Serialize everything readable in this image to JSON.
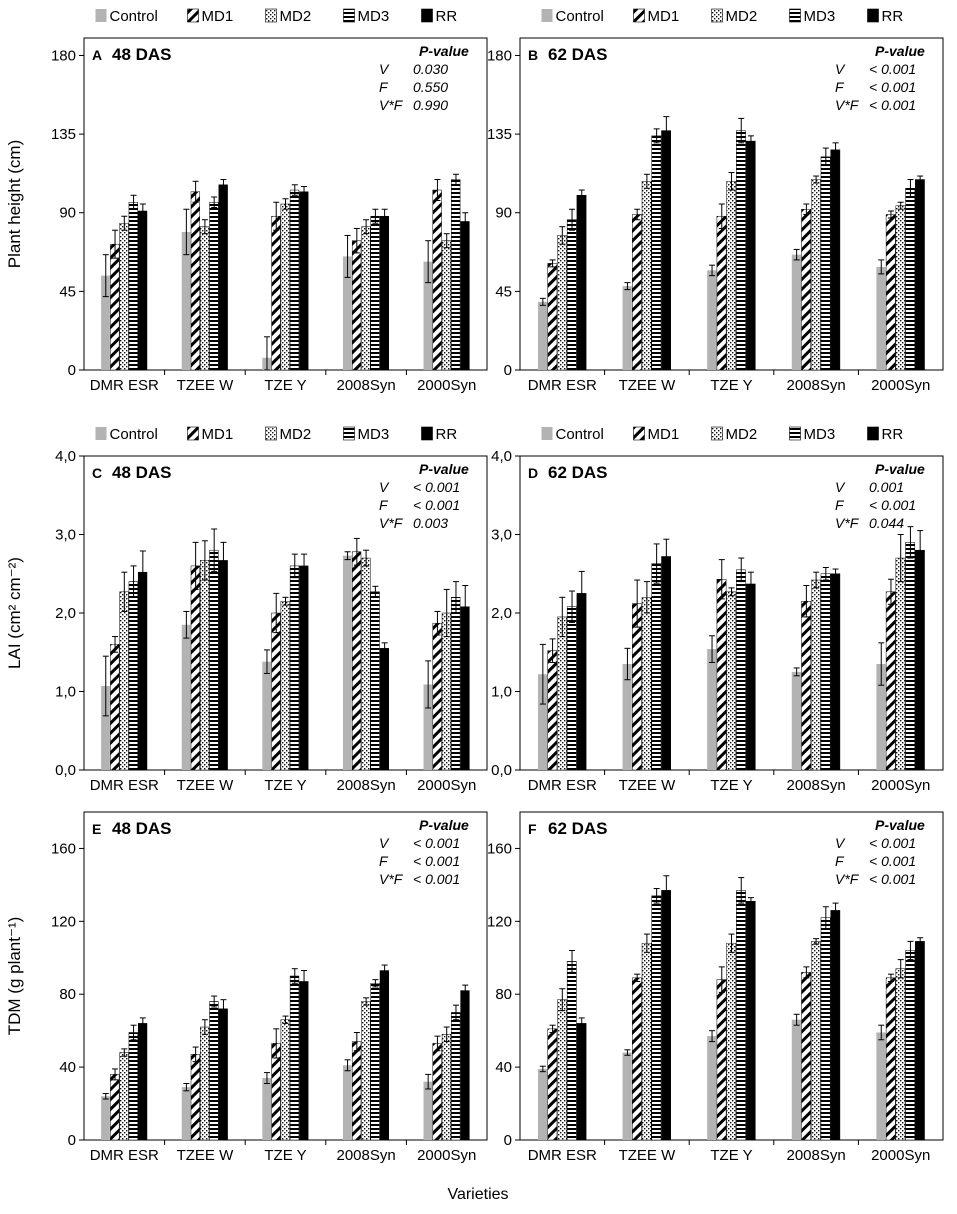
{
  "legend": [
    "Control",
    "MD1",
    "MD2",
    "MD3",
    "RR"
  ],
  "colors": {
    "control": "#b3b3b3",
    "ink": "#000000",
    "bg": "#ffffff"
  },
  "common_xlabel": "Varieties",
  "pvalue_title": "P-value",
  "chart_data": [
    {
      "type": "bar",
      "panel": "A",
      "title": "48 DAS",
      "categories": [
        "DMR ESR",
        "TZEE W",
        "TZE Y",
        "2008Syn",
        "2000Syn"
      ],
      "ylabel": "Plant height (cm)",
      "ylim": [
        0,
        190
      ],
      "yticks": [
        0,
        45,
        90,
        135,
        180
      ],
      "ytick_labels": [
        "0",
        "45",
        "90",
        "135",
        "180"
      ],
      "pvalues": [
        [
          "V",
          "0.030"
        ],
        [
          "F",
          "0.550"
        ],
        [
          "V*F",
          "0.990"
        ]
      ],
      "series": [
        {
          "name": "Control",
          "values": [
            54,
            79,
            7,
            65,
            62
          ],
          "errors": [
            12,
            13,
            12,
            12,
            12
          ]
        },
        {
          "name": "MD1",
          "values": [
            72,
            102,
            88,
            74,
            103
          ],
          "errors": [
            8,
            6,
            8,
            7,
            6
          ]
        },
        {
          "name": "MD2",
          "values": [
            84,
            82,
            95,
            82,
            74
          ],
          "errors": [
            4,
            4,
            3,
            4,
            4
          ]
        },
        {
          "name": "MD3",
          "values": [
            96,
            96,
            103,
            88,
            109
          ],
          "errors": [
            4,
            3,
            3,
            4,
            3
          ]
        },
        {
          "name": "RR",
          "values": [
            91,
            106,
            102,
            88,
            85
          ],
          "errors": [
            4,
            3,
            3,
            4,
            5
          ]
        }
      ]
    },
    {
      "type": "bar",
      "panel": "B",
      "title": "62 DAS",
      "categories": [
        "DMR ESR",
        "TZEE W",
        "TZE Y",
        "2008Syn",
        "2000Syn"
      ],
      "ylabel": "",
      "ylim": [
        0,
        190
      ],
      "yticks": [
        0,
        45,
        90,
        135,
        180
      ],
      "ytick_labels": [
        "0",
        "45",
        "90",
        "135",
        "180"
      ],
      "pvalues": [
        [
          "V",
          "< 0.001"
        ],
        [
          "F",
          "< 0.001"
        ],
        [
          "V*F",
          "< 0.001"
        ]
      ],
      "series": [
        {
          "name": "Control",
          "values": [
            39,
            48,
            57,
            66,
            59
          ],
          "errors": [
            2,
            2,
            3,
            3,
            4
          ]
        },
        {
          "name": "MD1",
          "values": [
            61,
            89,
            88,
            92,
            89
          ],
          "errors": [
            2,
            3,
            7,
            3,
            2
          ]
        },
        {
          "name": "MD2",
          "values": [
            77,
            108,
            108,
            109,
            94
          ],
          "errors": [
            5,
            4,
            5,
            2,
            2
          ]
        },
        {
          "name": "MD3",
          "values": [
            86,
            134,
            137,
            122,
            104
          ],
          "errors": [
            6,
            4,
            7,
            5,
            5
          ]
        },
        {
          "name": "RR",
          "values": [
            100,
            137,
            131,
            126,
            109
          ],
          "errors": [
            3,
            8,
            3,
            4,
            2
          ]
        }
      ]
    },
    {
      "type": "bar",
      "panel": "C",
      "title": "48 DAS",
      "categories": [
        "DMR ESR",
        "TZEE W",
        "TZE Y",
        "2008Syn",
        "2000Syn"
      ],
      "ylabel": "LAI (cm² cm⁻²)",
      "ylim": [
        0,
        4
      ],
      "yticks": [
        0,
        1,
        2,
        3,
        4
      ],
      "ytick_labels": [
        "0,0",
        "1,0",
        "2,0",
        "3,0",
        "4,0"
      ],
      "pvalues": [
        [
          "V",
          "< 0.001"
        ],
        [
          "F",
          "< 0.001"
        ],
        [
          "V*F",
          "0.003"
        ]
      ],
      "series": [
        {
          "name": "Control",
          "values": [
            1.07,
            1.85,
            1.38,
            2.73,
            1.09
          ],
          "errors": [
            0.38,
            0.17,
            0.15,
            0.05,
            0.3
          ]
        },
        {
          "name": "MD1",
          "values": [
            1.6,
            2.6,
            2.0,
            2.78,
            1.87
          ],
          "errors": [
            0.1,
            0.3,
            0.25,
            0.17,
            0.15
          ]
        },
        {
          "name": "MD2",
          "values": [
            2.27,
            2.67,
            2.15,
            2.7,
            2.0
          ],
          "errors": [
            0.25,
            0.25,
            0.05,
            0.1,
            0.3
          ]
        },
        {
          "name": "MD3",
          "values": [
            2.4,
            2.8,
            2.6,
            2.27,
            2.2
          ],
          "errors": [
            0.2,
            0.27,
            0.15,
            0.07,
            0.2
          ]
        },
        {
          "name": "RR",
          "values": [
            2.52,
            2.67,
            2.6,
            1.55,
            2.08
          ],
          "errors": [
            0.27,
            0.23,
            0.15,
            0.07,
            0.27
          ]
        }
      ]
    },
    {
      "type": "bar",
      "panel": "D",
      "title": "62 DAS",
      "categories": [
        "DMR ESR",
        "TZEE W",
        "TZE Y",
        "2008Syn",
        "2000Syn"
      ],
      "ylabel": "",
      "ylim": [
        0,
        4
      ],
      "yticks": [
        0,
        1,
        2,
        3,
        4
      ],
      "ytick_labels": [
        "0,0",
        "1,0",
        "2,0",
        "3,0",
        "4,0"
      ],
      "pvalues": [
        [
          "V",
          "0.001"
        ],
        [
          "F",
          "< 0.001"
        ],
        [
          "V*F",
          "0.044"
        ]
      ],
      "series": [
        {
          "name": "Control",
          "values": [
            1.22,
            1.35,
            1.54,
            1.25,
            1.35
          ],
          "errors": [
            0.38,
            0.2,
            0.17,
            0.05,
            0.27
          ]
        },
        {
          "name": "MD1",
          "values": [
            1.52,
            2.12,
            2.43,
            2.15,
            2.27
          ],
          "errors": [
            0.15,
            0.3,
            0.25,
            0.2,
            0.16
          ]
        },
        {
          "name": "MD2",
          "values": [
            1.95,
            2.2,
            2.27,
            2.42,
            2.7
          ],
          "errors": [
            0.25,
            0.2,
            0.05,
            0.1,
            0.3
          ]
        },
        {
          "name": "MD3",
          "values": [
            2.08,
            2.63,
            2.55,
            2.5,
            2.9
          ],
          "errors": [
            0.2,
            0.25,
            0.15,
            0.08,
            0.2
          ]
        },
        {
          "name": "RR",
          "values": [
            2.25,
            2.72,
            2.37,
            2.5,
            2.8
          ],
          "errors": [
            0.28,
            0.22,
            0.15,
            0.06,
            0.25
          ]
        }
      ]
    },
    {
      "type": "bar",
      "panel": "E",
      "title": "48 DAS",
      "categories": [
        "DMR ESR",
        "TZEE W",
        "TZE Y",
        "2008Syn",
        "2000Syn"
      ],
      "ylabel": "TDM (g plant⁻¹)",
      "ylim": [
        0,
        180
      ],
      "yticks": [
        0,
        40,
        80,
        120,
        160
      ],
      "ytick_labels": [
        "0",
        "40",
        "80",
        "120",
        "160"
      ],
      "pvalues": [
        [
          "V",
          "< 0.001"
        ],
        [
          "F",
          "< 0.001"
        ],
        [
          "V*F",
          "< 0.001"
        ]
      ],
      "series": [
        {
          "name": "Control",
          "values": [
            24,
            29,
            34,
            41,
            32
          ],
          "errors": [
            1.5,
            2,
            3,
            3,
            4
          ]
        },
        {
          "name": "MD1",
          "values": [
            36,
            47,
            53,
            54,
            53
          ],
          "errors": [
            3,
            4,
            8,
            5,
            4
          ]
        },
        {
          "name": "MD2",
          "values": [
            48,
            62,
            66,
            76,
            58
          ],
          "errors": [
            2,
            4,
            2,
            2,
            4
          ]
        },
        {
          "name": "MD3",
          "values": [
            59,
            76,
            90,
            86,
            70
          ],
          "errors": [
            4,
            3,
            4,
            2,
            4
          ]
        },
        {
          "name": "RR",
          "values": [
            64,
            72,
            87,
            93,
            82
          ],
          "errors": [
            3,
            5,
            6,
            3,
            3
          ]
        }
      ]
    },
    {
      "type": "bar",
      "panel": "F",
      "title": "62 DAS",
      "categories": [
        "DMR ESR",
        "TZEE W",
        "TZE Y",
        "2008Syn",
        "2000Syn"
      ],
      "ylabel": "",
      "ylim": [
        0,
        180
      ],
      "yticks": [
        0,
        40,
        80,
        120,
        160
      ],
      "ytick_labels": [
        "0",
        "40",
        "80",
        "120",
        "160"
      ],
      "pvalues": [
        [
          "V",
          "< 0.001"
        ],
        [
          "F",
          "< 0.001"
        ],
        [
          "V*F",
          "< 0.001"
        ]
      ],
      "series": [
        {
          "name": "Control",
          "values": [
            39,
            48,
            57,
            66,
            59
          ],
          "errors": [
            1.5,
            1.5,
            3,
            3,
            4
          ]
        },
        {
          "name": "MD1",
          "values": [
            61,
            89,
            88,
            92,
            89
          ],
          "errors": [
            2,
            2,
            7,
            3,
            2
          ]
        },
        {
          "name": "MD2",
          "values": [
            77,
            108,
            108,
            109,
            94
          ],
          "errors": [
            6,
            5,
            5,
            1.5,
            5
          ]
        },
        {
          "name": "MD3",
          "values": [
            98,
            134,
            137,
            122,
            104
          ],
          "errors": [
            6,
            4,
            7,
            6,
            5
          ]
        },
        {
          "name": "RR",
          "values": [
            64,
            137,
            131,
            126,
            109
          ],
          "errors": [
            3,
            8,
            2,
            4,
            2
          ]
        }
      ]
    }
  ]
}
